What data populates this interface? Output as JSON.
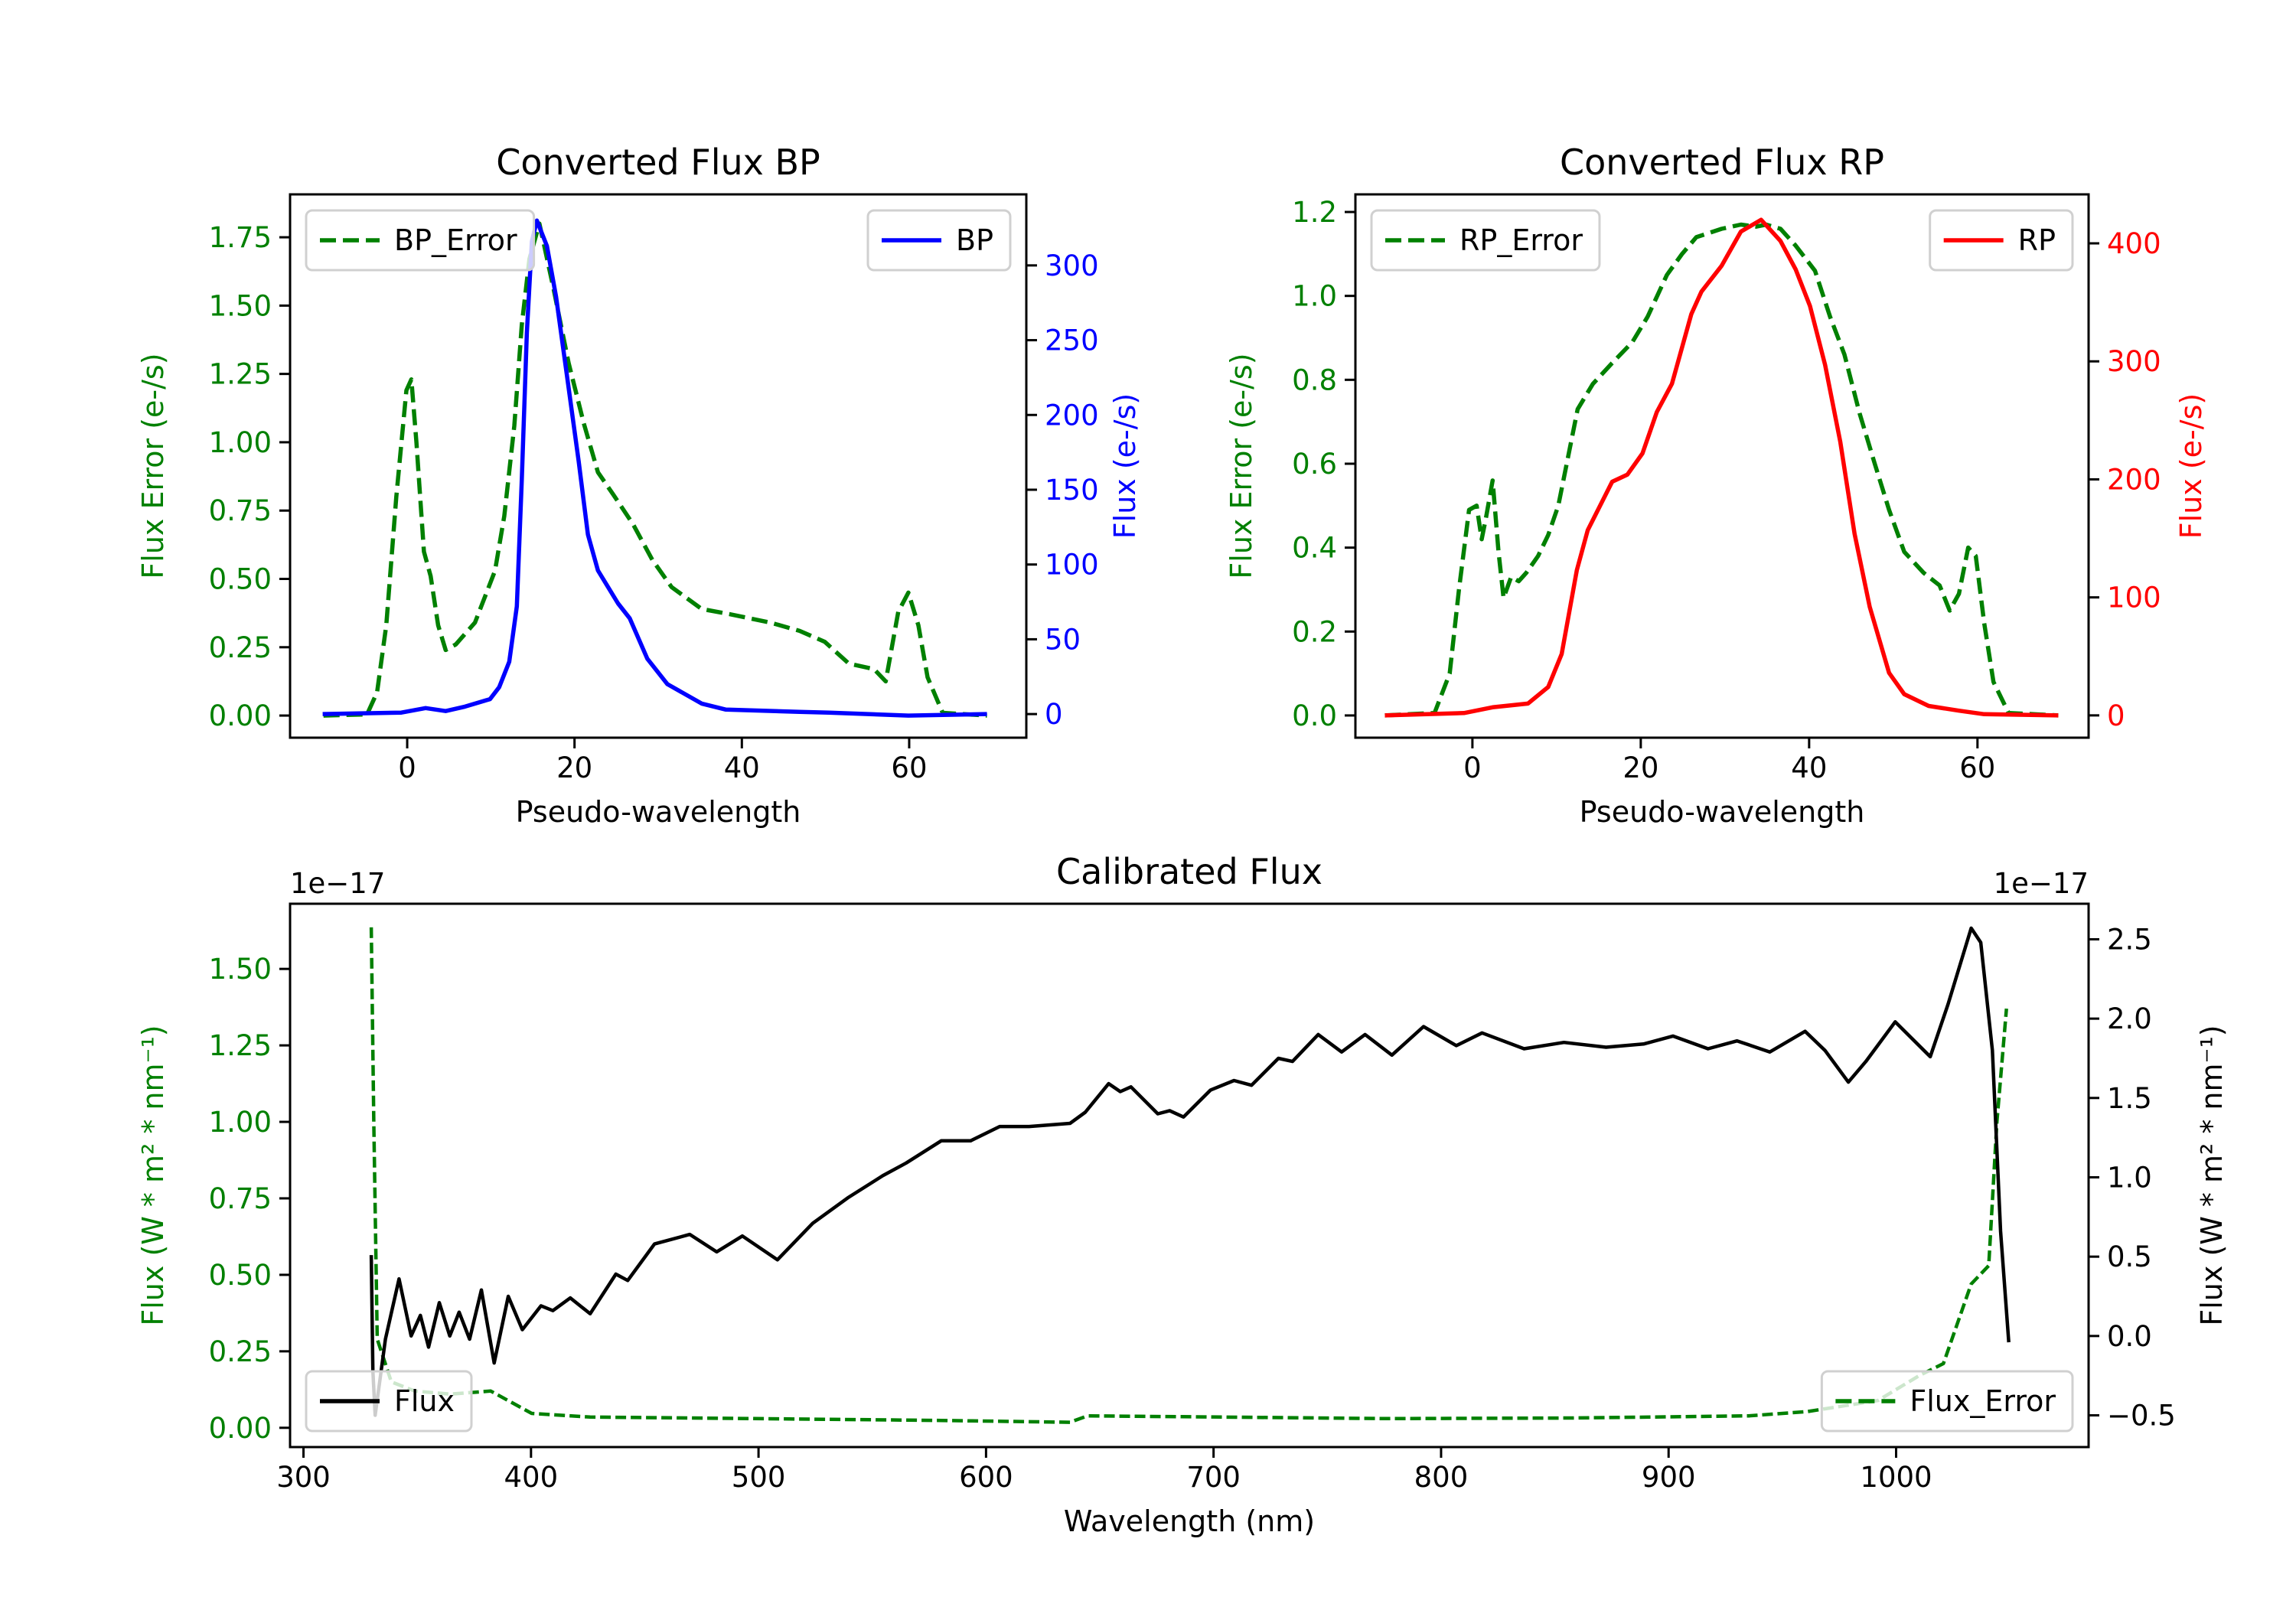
{
  "chart_data": [
    {
      "type": "line",
      "title": "Converted Flux BP",
      "xlabel": "Pseudo-wavelength",
      "xlim": [
        -14,
        74
      ],
      "x_ticks": [
        "0",
        "20",
        "40",
        "60"
      ],
      "left_axis": {
        "label": "Flux Error (e-/s)",
        "color": "#008000",
        "ylim": [
          -0.081,
          1.907
        ],
        "ticks": [
          "0.00",
          "0.25",
          "0.50",
          "0.75",
          "1.00",
          "1.25",
          "1.50",
          "1.75"
        ]
      },
      "right_axis": {
        "label": "Flux (e-/s)",
        "color": "#0000ff",
        "ylim": [
          -15.8,
          347.5
        ],
        "ticks": [
          "0",
          "50",
          "100",
          "150",
          "200",
          "250",
          "300"
        ]
      },
      "series": [
        {
          "name": "BP_Error",
          "axis": "left",
          "color": "#008000",
          "style": "dashed",
          "legend": "upper-left",
          "x": [
            -10,
            -4.8,
            -3.6,
            -2.5,
            -1.3,
            -0.1,
            0.5,
            1.1,
            2,
            2.8,
            3.7,
            4.6,
            5.8,
            8.1,
            10.5,
            11.6,
            12.8,
            13.7,
            14.6,
            15.8,
            17.5,
            19.3,
            21.1,
            22.8,
            24.6,
            27,
            29.3,
            31.6,
            35.2,
            38.7,
            43.4,
            46.9,
            49.9,
            52.8,
            55.8,
            57.2,
            58.7,
            59.9,
            61.1,
            62.2,
            64,
            69.3
          ],
          "y": [
            0,
            0.004,
            0.085,
            0.33,
            0.8,
            1.19,
            1.23,
            1.0,
            0.6,
            0.51,
            0.33,
            0.24,
            0.26,
            0.34,
            0.53,
            0.73,
            1.06,
            1.43,
            1.67,
            1.8,
            1.56,
            1.29,
            1.07,
            0.89,
            0.81,
            0.7,
            0.57,
            0.47,
            0.39,
            0.37,
            0.34,
            0.31,
            0.27,
            0.19,
            0.17,
            0.125,
            0.38,
            0.45,
            0.33,
            0.14,
            0.01,
            0
          ]
        },
        {
          "name": "BP",
          "axis": "right",
          "color": "#0000ff",
          "style": "solid",
          "legend": "upper-right",
          "x": [
            -10.1,
            -0.7,
            2.2,
            4.6,
            6.9,
            9.9,
            11,
            12.2,
            13.1,
            13.7,
            14.3,
            14.9,
            15.5,
            16.7,
            17.8,
            19,
            20.5,
            21.6,
            22.8,
            25.2,
            26.6,
            28.7,
            31.1,
            35.2,
            38.1,
            46.9,
            50.4,
            59.9,
            69.3
          ],
          "y": [
            0,
            1,
            4,
            2,
            5,
            10,
            18,
            35,
            72,
            157,
            255,
            316,
            330,
            313,
            279,
            230,
            169,
            120,
            96,
            74,
            64,
            37,
            20,
            7,
            3,
            1.5,
            1,
            -1,
            0
          ]
        }
      ]
    },
    {
      "type": "line",
      "title": "Converted Flux RP",
      "xlabel": "Pseudo-wavelength",
      "xlim": [
        -13.9,
        73.2
      ],
      "x_ticks": [
        "0",
        "20",
        "40",
        "60"
      ],
      "left_axis": {
        "label": "Flux Error (e-/s)",
        "color": "#008000",
        "ylim": [
          -0.053,
          1.242
        ],
        "ticks": [
          "0.0",
          "0.2",
          "0.4",
          "0.6",
          "0.8",
          "1.0",
          "1.2"
        ]
      },
      "right_axis": {
        "label": "Flux (e-/s)",
        "color": "#ff0000",
        "ylim": [
          -18.9,
          441.5
        ],
        "ticks": [
          "0",
          "100",
          "200",
          "300",
          "400"
        ]
      },
      "series": [
        {
          "name": "RP_Error",
          "axis": "left",
          "color": "#008000",
          "style": "dashed",
          "legend": "upper-left",
          "x": [
            -10.4,
            -4.5,
            -2.7,
            -1.6,
            -0.4,
            0.5,
            1.1,
            1.6,
            2.4,
            3.1,
            3.7,
            4.6,
            5.5,
            6.4,
            7.8,
            9,
            10.2,
            11.4,
            12.5,
            14.3,
            16.6,
            19,
            20.8,
            23.1,
            24.9,
            26.6,
            29.6,
            31.9,
            33.7,
            34.9,
            36.6,
            38.4,
            40.7,
            42.5,
            44.2,
            46,
            47.8,
            49.5,
            51.3,
            53.6,
            55.5,
            56.7,
            57.8,
            58.9,
            59.8,
            60.8,
            61.9,
            63.7,
            69.6
          ],
          "y": [
            0,
            0.006,
            0.1,
            0.3,
            0.49,
            0.5,
            0.42,
            0.47,
            0.56,
            0.39,
            0.28,
            0.33,
            0.32,
            0.34,
            0.38,
            0.43,
            0.5,
            0.62,
            0.73,
            0.79,
            0.84,
            0.89,
            0.95,
            1.05,
            1.1,
            1.14,
            1.16,
            1.17,
            1.165,
            1.17,
            1.16,
            1.12,
            1.06,
            0.95,
            0.86,
            0.72,
            0.6,
            0.49,
            0.39,
            0.34,
            0.31,
            0.25,
            0.29,
            0.4,
            0.38,
            0.22,
            0.08,
            0.006,
            0
          ]
        },
        {
          "name": "RP",
          "axis": "right",
          "color": "#ff0000",
          "style": "solid",
          "legend": "upper-right",
          "x": [
            -10.4,
            -1,
            2.5,
            6.6,
            9,
            10.6,
            12.4,
            13.7,
            16.6,
            18.4,
            20.2,
            21.9,
            23.7,
            26,
            27.2,
            29.6,
            31.9,
            34.3,
            36.6,
            38.4,
            40.1,
            41.9,
            43.7,
            45.4,
            47.2,
            49.5,
            51.3,
            54.2,
            57.8,
            60.8,
            69.6
          ],
          "y": [
            0,
            2,
            7,
            10,
            24,
            52,
            123,
            157,
            198,
            204,
            222,
            257,
            281,
            340,
            359,
            381,
            410,
            420,
            402,
            378,
            347,
            297,
            232,
            154,
            92,
            36,
            18,
            8,
            4,
            1,
            0
          ]
        }
      ]
    },
    {
      "type": "line",
      "title": "Calibrated Flux",
      "xlabel": "Wavelength (nm)",
      "xlim": [
        294.1,
        1084.6
      ],
      "x_ticks": [
        "300",
        "400",
        "500",
        "600",
        "700",
        "800",
        "900",
        "1000"
      ],
      "left_axis": {
        "label": "Flux (W * m² * nm⁻¹)",
        "color": "#008000",
        "ylim": [
          -0.063,
          1.713
        ],
        "offset": "1e−17",
        "ticks": [
          "0.00",
          "0.25",
          "0.50",
          "0.75",
          "1.00",
          "1.25",
          "1.50"
        ]
      },
      "right_axis": {
        "label": "Flux (W * m² * nm⁻¹)",
        "color": "#000000",
        "ylim": [
          -0.7,
          2.724
        ],
        "offset": "1e−17",
        "ticks": [
          "−0.5",
          "0.0",
          "0.5",
          "1.0",
          "1.5",
          "2.0",
          "2.5"
        ]
      },
      "series": [
        {
          "name": "Flux_Error",
          "axis": "left",
          "color": "#008000",
          "style": "dashed",
          "legend": "lower-right",
          "x": [
            329.8,
            330.9,
            332.4,
            338.6,
            348.9,
            364.3,
            382.3,
            400.3,
            426,
            498,
            580.3,
            636.9,
            644.6,
            703.8,
            775.8,
            858.1,
            935.3,
            961,
            992,
            1010,
            1020.8,
            1033,
            1040.7,
            1044.3,
            1048.5
          ],
          "y": [
            1.636,
            1.0,
            0.29,
            0.15,
            0.12,
            0.11,
            0.12,
            0.047,
            0.035,
            0.03,
            0.024,
            0.018,
            0.039,
            0.035,
            0.03,
            0.032,
            0.039,
            0.053,
            0.089,
            0.17,
            0.21,
            0.47,
            0.53,
            1.0,
            1.37
          ]
        },
        {
          "name": "Flux",
          "axis": "right",
          "color": "#000000",
          "style": "solid",
          "legend": "lower-left",
          "x": [
            329.8,
            330.5,
            331.5,
            336,
            342,
            347.3,
            351.4,
            355,
            359.7,
            364.3,
            368.4,
            373,
            378.2,
            383.8,
            390,
            396.2,
            404.4,
            409.6,
            417.3,
            426,
            437.3,
            442.5,
            454.3,
            469.8,
            481.6,
            492.9,
            508.3,
            523.8,
            539.2,
            554.6,
            564.9,
            580.3,
            593.2,
            606,
            618.9,
            636.9,
            643.6,
            653.9,
            659,
            663.7,
            675.5,
            680.7,
            686.8,
            698.7,
            709,
            716.7,
            728.5,
            734.7,
            746,
            756.3,
            766.6,
            778.4,
            792.3,
            806.7,
            818,
            836.5,
            854,
            872.5,
            889,
            901.9,
            917.3,
            930.1,
            944.5,
            960,
            968.7,
            979,
            986.7,
            999.6,
            1015,
            1022.8,
            1033,
            1037.2,
            1042.3,
            1045.9,
            1049.5
          ],
          "y": [
            0.51,
            -0.22,
            -0.5,
            -0.02,
            0.36,
            0,
            0.13,
            -0.07,
            0.21,
            0,
            0.15,
            -0.02,
            0.29,
            -0.17,
            0.25,
            0.04,
            0.19,
            0.16,
            0.24,
            0.14,
            0.39,
            0.35,
            0.58,
            0.64,
            0.53,
            0.63,
            0.48,
            0.71,
            0.87,
            1.01,
            1.09,
            1.23,
            1.23,
            1.32,
            1.32,
            1.34,
            1.41,
            1.59,
            1.54,
            1.57,
            1.4,
            1.42,
            1.38,
            1.55,
            1.61,
            1.58,
            1.75,
            1.73,
            1.9,
            1.79,
            1.9,
            1.77,
            1.95,
            1.83,
            1.91,
            1.81,
            1.85,
            1.82,
            1.84,
            1.89,
            1.81,
            1.86,
            1.79,
            1.92,
            1.8,
            1.6,
            1.73,
            1.98,
            1.76,
            2.09,
            2.57,
            2.48,
            1.8,
            0.66,
            -0.04
          ]
        }
      ]
    }
  ]
}
